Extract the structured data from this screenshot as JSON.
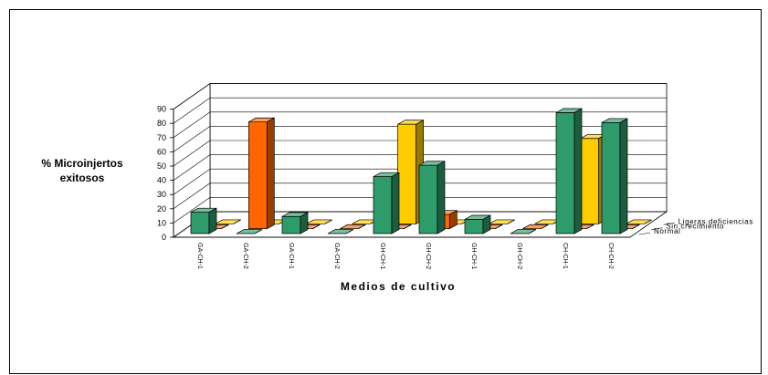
{
  "chart_data": {
    "type": "bar",
    "subtype": "3d-clustered",
    "title": "",
    "ylabel": "% Microinjertos exitosos",
    "ylabel_lines": [
      "% Microinjertos",
      "exitosos"
    ],
    "xlabel": "Medios de cultivo",
    "ylim": [
      0,
      90
    ],
    "yticks": [
      0,
      10,
      20,
      30,
      40,
      50,
      60,
      70,
      80,
      90
    ],
    "grid": true,
    "categories": [
      "GA-CH-1",
      "GA-CH-2",
      "GA-CH-1",
      "GA-CH-2",
      "GH-CH-1",
      "GH-CH-2",
      "GH-CH-1",
      "GH-CH-2",
      "CH-CH-1",
      "CH-CH-2"
    ],
    "series": [
      {
        "name": "Normal",
        "color": "#2e9b6a",
        "values": [
          15,
          0,
          12,
          0,
          40,
          48,
          10,
          0,
          85,
          78
        ]
      },
      {
        "name": "Sin crecimiento",
        "color": "#ff6600",
        "values": [
          0,
          75,
          0,
          0,
          0,
          10,
          0,
          0,
          0,
          0
        ]
      },
      {
        "name": "Ligeras deficiencias",
        "color": "#ffcc00",
        "values": [
          0,
          0,
          0,
          0,
          70,
          0,
          0,
          0,
          60,
          0
        ]
      }
    ]
  }
}
